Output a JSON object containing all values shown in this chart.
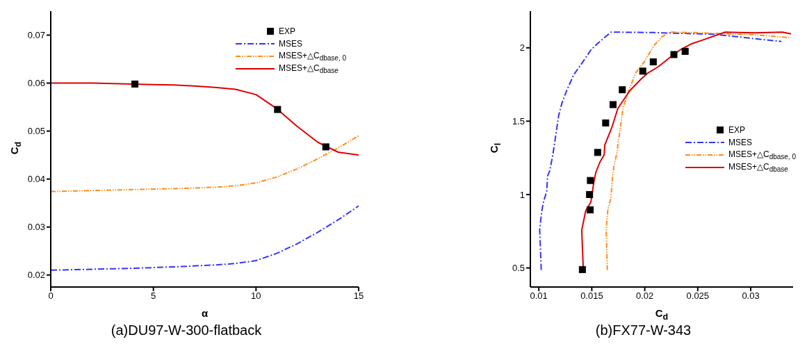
{
  "chart_data": [
    {
      "type": "line",
      "title": "(a)DU97-W-300-flatback",
      "xlabel": "α",
      "ylabel": "C$_{d}$",
      "xlim": [
        0,
        15
      ],
      "xticks": [
        0,
        5,
        10,
        15
      ],
      "ylim": [
        0.0175,
        0.075
      ],
      "yticks": [
        0.02,
        0.03,
        0.04,
        0.05,
        0.06,
        0.07
      ],
      "grid": false,
      "legend": "top right",
      "series": [
        {
          "name": "EXP",
          "type": "scatter",
          "marker": "square",
          "color": "#000000",
          "x": [
            4.1,
            11.05,
            13.4
          ],
          "values": [
            0.0598,
            0.0545,
            0.0467
          ]
        },
        {
          "name": "MSES",
          "color": "#3333ff",
          "line_style": "dashed",
          "x": [
            0,
            2,
            4,
            6,
            8,
            9,
            10,
            11,
            12,
            13,
            14,
            15
          ],
          "values": [
            0.021,
            0.0212,
            0.0214,
            0.0217,
            0.0221,
            0.0224,
            0.023,
            0.0245,
            0.0265,
            0.0289,
            0.0315,
            0.0344
          ]
        },
        {
          "name": "MSES+△C$_{dbase, 0}$",
          "color": "#ff8c1a",
          "line_style": "dotted",
          "x": [
            0,
            2,
            4,
            6,
            8,
            9,
            10,
            11,
            12,
            13,
            14,
            15
          ],
          "values": [
            0.0374,
            0.0376,
            0.0378,
            0.038,
            0.0383,
            0.0386,
            0.0392,
            0.0404,
            0.0421,
            0.0442,
            0.0465,
            0.049
          ]
        },
        {
          "name": "MSES+△C$_{dbase}$",
          "color": "#dd0000",
          "line_style": "solid",
          "x": [
            0,
            2,
            3,
            5,
            6,
            7,
            8,
            9,
            10,
            11,
            12,
            13,
            14,
            15
          ],
          "values": [
            0.06,
            0.06,
            0.0599,
            0.0597,
            0.0596,
            0.0594,
            0.0591,
            0.0587,
            0.0576,
            0.0547,
            0.051,
            0.0477,
            0.0456,
            0.045
          ]
        }
      ]
    },
    {
      "type": "line",
      "title": "(b)FX77-W-343",
      "xlabel": "C$_{d}$",
      "ylabel": "C$_{l}$",
      "xlim": [
        0.0092,
        0.034
      ],
      "xticks": [
        0.01,
        0.015,
        0.02,
        0.025,
        0.03
      ],
      "ylim": [
        0.37,
        2.25
      ],
      "yticks": [
        0.5,
        1,
        1.5,
        2
      ],
      "grid": false,
      "legend": "right",
      "series": [
        {
          "name": "EXP",
          "type": "scatter",
          "marker": "square",
          "color": "#000000",
          "x": [
            0.01411,
            0.01485,
            0.01479,
            0.01487,
            0.01555,
            0.01631,
            0.01701,
            0.01788,
            0.01981,
            0.0208,
            0.02275,
            0.02381
          ],
          "values": [
            0.489,
            0.896,
            1.0,
            1.096,
            1.287,
            1.488,
            1.613,
            1.714,
            1.841,
            1.904,
            1.954,
            1.976
          ]
        },
        {
          "name": "MSES",
          "color": "#3333ff",
          "line_style": "dashed",
          "x": [
            0.01023,
            0.01008,
            0.01027,
            0.01045,
            0.01074,
            0.01083,
            0.01102,
            0.01131,
            0.0115,
            0.01188,
            0.01216,
            0.01263,
            0.0133,
            0.01405,
            0.01491,
            0.01557,
            0.0168,
            0.02087,
            0.02655,
            0.0329
          ],
          "values": [
            0.486,
            0.761,
            0.884,
            0.953,
            1.021,
            1.128,
            1.159,
            1.266,
            1.358,
            1.541,
            1.618,
            1.709,
            1.817,
            1.893,
            1.985,
            2.031,
            2.107,
            2.104,
            2.092,
            2.043
          ]
        },
        {
          "name": "MSES+△C$_{dbase, 0}$",
          "color": "#ff8c1a",
          "line_style": "dotted",
          "x": [
            0.01646,
            0.01636,
            0.01652,
            0.0168,
            0.01693,
            0.01708,
            0.01741,
            0.01746,
            0.01775,
            0.01794,
            0.01841,
            0.01917,
            0.01992,
            0.02087,
            0.02163,
            0.02239,
            0.02466,
            0.0275,
            0.03034,
            0.03381
          ],
          "values": [
            0.486,
            0.761,
            0.899,
            0.976,
            1.098,
            1.19,
            1.297,
            1.343,
            1.48,
            1.587,
            1.694,
            1.832,
            1.901,
            2.015,
            2.076,
            2.107,
            2.104,
            2.096,
            2.089,
            2.069
          ]
        },
        {
          "name": "MSES+△C$_{dbase}$",
          "color": "#dd0000",
          "line_style": "solid",
          "x": [
            0.0142,
            0.01405,
            0.01443,
            0.01491,
            0.01519,
            0.01538,
            0.01576,
            0.01617,
            0.01623,
            0.01661,
            0.01689,
            0.01746,
            0.0186,
            0.01964,
            0.02021,
            0.02125,
            0.02258,
            0.02333,
            0.02438,
            0.0258,
            0.02759,
            0.03034,
            0.03299,
            0.03381
          ],
          "values": [
            0.486,
            0.757,
            0.891,
            0.948,
            1.083,
            1.151,
            1.22,
            1.271,
            1.339,
            1.407,
            1.457,
            1.587,
            1.709,
            1.786,
            1.824,
            1.87,
            1.946,
            1.985,
            2.026,
            2.061,
            2.107,
            2.102,
            2.107,
            2.095
          ]
        }
      ]
    }
  ]
}
